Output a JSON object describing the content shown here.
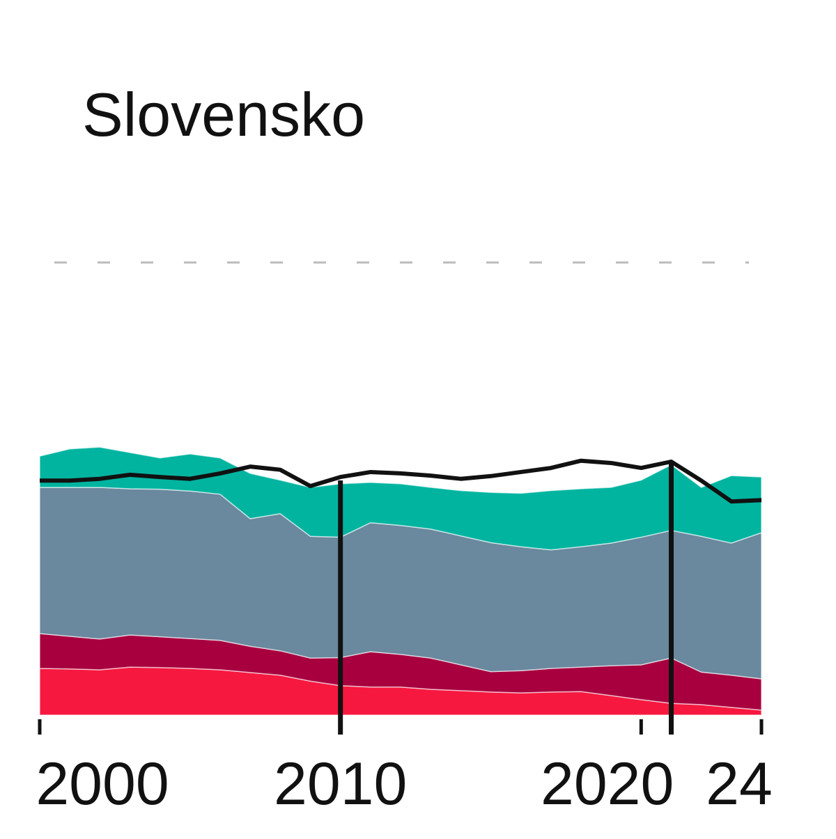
{
  "chart_data": {
    "type": "stacked_area_line",
    "title": "Slovensko",
    "x": [
      2000,
      2001,
      2002,
      2003,
      2004,
      2005,
      2006,
      2007,
      2008,
      2009,
      2010,
      2011,
      2012,
      2013,
      2014,
      2015,
      2016,
      2017,
      2018,
      2019,
      2020,
      2021,
      2022,
      2023,
      2024
    ],
    "xlim": [
      2000,
      2024
    ],
    "xticks": [
      2000,
      2010,
      2020,
      {
        "value": 2024,
        "label": "24"
      }
    ],
    "ylim": [
      0,
      100
    ],
    "grid": true,
    "markers": [
      2010,
      2021
    ],
    "series": [
      {
        "color": "#f7183f",
        "values": [
          10.3,
          10.2,
          10.0,
          10.6,
          10.5,
          10.3,
          10.0,
          9.4,
          8.8,
          7.5,
          6.5,
          6.2,
          6.2,
          5.7,
          5.4,
          5.1,
          4.9,
          5.1,
          5.2,
          4.3,
          3.4,
          2.6,
          2.3,
          1.7,
          1.1
        ]
      },
      {
        "color": "#a8003f",
        "values": [
          7.7,
          7.2,
          6.8,
          7.1,
          6.8,
          6.6,
          6.5,
          5.8,
          5.4,
          5.1,
          6.2,
          7.8,
          7.2,
          6.9,
          5.7,
          4.5,
          4.9,
          5.2,
          5.4,
          6.6,
          7.7,
          10.0,
          7.2,
          7.1,
          6.9
        ]
      },
      {
        "color": "#6a889e",
        "values": [
          32.3,
          32.9,
          33.5,
          32.3,
          32.6,
          32.6,
          32.3,
          28.2,
          30.3,
          26.9,
          26.6,
          28.5,
          28.5,
          28.5,
          28.5,
          28.5,
          27.4,
          26.2,
          26.6,
          27.1,
          28.2,
          28.2,
          30.0,
          29.2,
          32.3
        ]
      },
      {
        "color": "#00b4a0",
        "values": [
          6.9,
          8.5,
          8.9,
          8.0,
          6.9,
          8.2,
          8.0,
          10.0,
          7.4,
          10.8,
          11.8,
          8.9,
          9.2,
          9.2,
          10.0,
          11.1,
          11.8,
          13.1,
          12.8,
          12.3,
          12.6,
          14.5,
          10.8,
          14.9,
          12.3
        ]
      }
    ],
    "line": {
      "color": "#111111",
      "values": [
        51.8,
        51.8,
        52.2,
        53.1,
        52.6,
        52.2,
        53.4,
        54.9,
        54.2,
        50.6,
        52.6,
        53.7,
        53.4,
        52.9,
        52.2,
        52.8,
        53.7,
        54.6,
        56.2,
        55.7,
        54.6,
        56.0,
        51.8,
        47.2,
        47.5
      ]
    }
  }
}
